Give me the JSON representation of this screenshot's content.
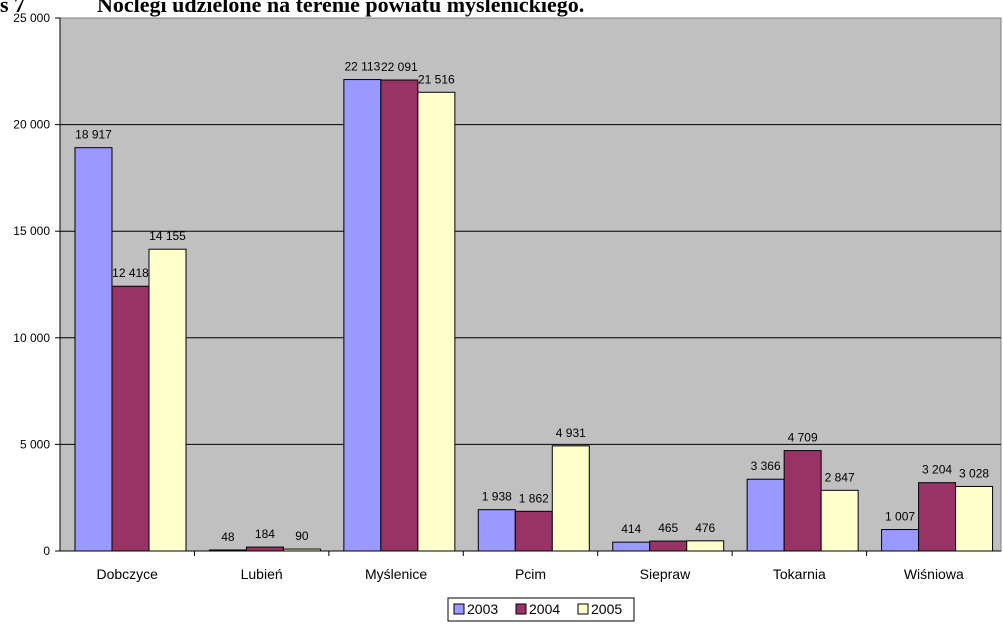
{
  "chart_data": {
    "type": "bar",
    "title": "Noclegi udzielone na terenie powiatu myślenickiego.",
    "title_prefix": "s 7",
    "categories": [
      "Dobczyce",
      "Lubień",
      "Myślenice",
      "Pcim",
      "Siepraw",
      "Tokarnia",
      "Wiśniowa"
    ],
    "series": [
      {
        "name": "2003",
        "color": "#9999FF",
        "values": [
          18917,
          48,
          22113,
          1938,
          414,
          3366,
          1007
        ]
      },
      {
        "name": "2004",
        "color": "#993366",
        "values": [
          12418,
          184,
          22091,
          1862,
          465,
          4709,
          3204
        ]
      },
      {
        "name": "2005",
        "color": "#FFFFCC",
        "values": [
          14155,
          90,
          21516,
          4931,
          476,
          2847,
          3028
        ]
      }
    ],
    "ylim": [
      0,
      25000
    ],
    "yticks": [
      {
        "value": 0,
        "label": "0"
      },
      {
        "value": 5000,
        "label": "5 000"
      },
      {
        "value": 10000,
        "label": "10 000"
      },
      {
        "value": 15000,
        "label": "15 000"
      },
      {
        "value": 20000,
        "label": "20 000"
      },
      {
        "value": 25000,
        "label": "25 000"
      }
    ],
    "plot_background": "#C0C0C0",
    "grid": true,
    "legend_position": "bottom-center"
  }
}
